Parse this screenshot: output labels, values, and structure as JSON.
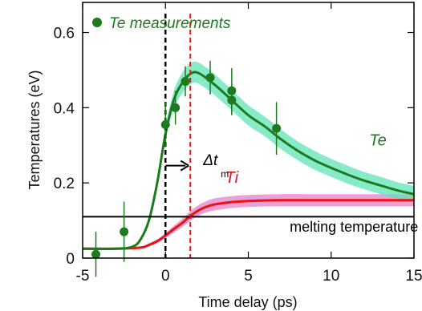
{
  "chart_data": {
    "type": "line",
    "xlabel": "Time delay (ps)",
    "ylabel": "Temperatures (eV)",
    "xlim": [
      -5,
      15
    ],
    "ylim": [
      0,
      0.68
    ],
    "x_ticks": [
      -5,
      0,
      5,
      10,
      15
    ],
    "x_tick_labels": [
      "-5",
      "0",
      "5",
      "10",
      "15"
    ],
    "y_ticks": [
      0,
      0.2,
      0.4,
      0.6
    ],
    "y_tick_labels": [
      "0",
      "0.2",
      "0.4",
      "0.6"
    ],
    "grid": false,
    "legend": {
      "position": "top-left",
      "label": "Te measurements"
    },
    "colors": {
      "te": "#1e7a1e",
      "te_band": "#5fe3b6",
      "ti": "#ee1111",
      "ti_band": "#e98fd2",
      "melting": "#000000",
      "pump_line": "#000000",
      "dt_line": "#ee1111",
      "text_black": "#000000"
    },
    "series": [
      {
        "name": "Te measurements",
        "kind": "scatter",
        "points": [
          {
            "x": -4.2,
            "y": 0.01,
            "err_y": 0.06,
            "err_x": 0
          },
          {
            "x": -2.5,
            "y": 0.07,
            "err_y": 0.08,
            "err_x": 0
          },
          {
            "x": 0.0,
            "y": 0.355,
            "err_y": 0.06,
            "err_x": 0.15
          },
          {
            "x": 0.6,
            "y": 0.4,
            "err_y": 0.045,
            "err_x": 0.2
          },
          {
            "x": 1.2,
            "y": 0.47,
            "err_y": 0.04,
            "err_x": 0.2
          },
          {
            "x": 2.7,
            "y": 0.48,
            "err_y": 0.045,
            "err_x": 0
          },
          {
            "x": 4.0,
            "y": 0.445,
            "err_y": 0.06,
            "err_x": 0
          },
          {
            "x": 4.0,
            "y": 0.42,
            "err_y": 0.04,
            "err_x": 0
          },
          {
            "x": 6.7,
            "y": 0.345,
            "err_y": 0.07,
            "err_x": 0
          }
        ]
      },
      {
        "name": "Te",
        "kind": "curve",
        "points": [
          [
            -5,
            0.025
          ],
          [
            -3,
            0.025
          ],
          [
            -2,
            0.03
          ],
          [
            -1.5,
            0.05
          ],
          [
            -1,
            0.1
          ],
          [
            -0.5,
            0.2
          ],
          [
            0,
            0.33
          ],
          [
            0.5,
            0.42
          ],
          [
            1,
            0.465
          ],
          [
            1.5,
            0.49
          ],
          [
            2,
            0.492
          ],
          [
            3,
            0.46
          ],
          [
            4,
            0.42
          ],
          [
            5,
            0.38
          ],
          [
            6,
            0.35
          ],
          [
            7,
            0.315
          ],
          [
            8,
            0.285
          ],
          [
            9,
            0.26
          ],
          [
            10,
            0.24
          ],
          [
            11,
            0.222
          ],
          [
            12,
            0.206
          ],
          [
            13,
            0.193
          ],
          [
            14,
            0.18
          ],
          [
            15,
            0.17
          ]
        ],
        "band_halfwidth": [
          0.002,
          0.002,
          0.003,
          0.005,
          0.008,
          0.012,
          0.018,
          0.024,
          0.027,
          0.028,
          0.028,
          0.028,
          0.027,
          0.027,
          0.026,
          0.026,
          0.025,
          0.025,
          0.024,
          0.024,
          0.023,
          0.023,
          0.022,
          0.022
        ]
      },
      {
        "name": "Ti",
        "kind": "curve",
        "points": [
          [
            -5,
            0.025
          ],
          [
            -3,
            0.025
          ],
          [
            -1.5,
            0.028
          ],
          [
            -1,
            0.035
          ],
          [
            -0.5,
            0.045
          ],
          [
            0,
            0.06
          ],
          [
            0.5,
            0.077
          ],
          [
            1,
            0.093
          ],
          [
            1.5,
            0.112
          ],
          [
            2,
            0.127
          ],
          [
            2.5,
            0.137
          ],
          [
            3,
            0.143
          ],
          [
            4,
            0.149
          ],
          [
            5,
            0.152
          ],
          [
            7,
            0.154
          ],
          [
            10,
            0.154
          ],
          [
            13,
            0.154
          ],
          [
            15,
            0.154
          ]
        ],
        "band_halfwidth": [
          0.002,
          0.002,
          0.003,
          0.004,
          0.005,
          0.007,
          0.009,
          0.011,
          0.013,
          0.014,
          0.015,
          0.016,
          0.016,
          0.016,
          0.016,
          0.016,
          0.016,
          0.016
        ]
      }
    ],
    "reference_lines": {
      "melting_y": 0.11,
      "pump_x": 0,
      "dt_x": 1.5
    },
    "annotations": {
      "te_curve_label": "Te",
      "ti_curve_label": "Ti",
      "melting_label": "melting temperature",
      "dt_main": "Δt",
      "dt_sub": "m",
      "te_curve_label_pos": {
        "x": 12.3,
        "y": 0.3
      },
      "ti_curve_label_pos": {
        "x": 3.6,
        "y": 0.2
      },
      "melting_label_pos": {
        "x": 7.5,
        "y": 0.07
      },
      "dt_label_pos": {
        "x": 1.2,
        "y": 0.25
      }
    }
  }
}
